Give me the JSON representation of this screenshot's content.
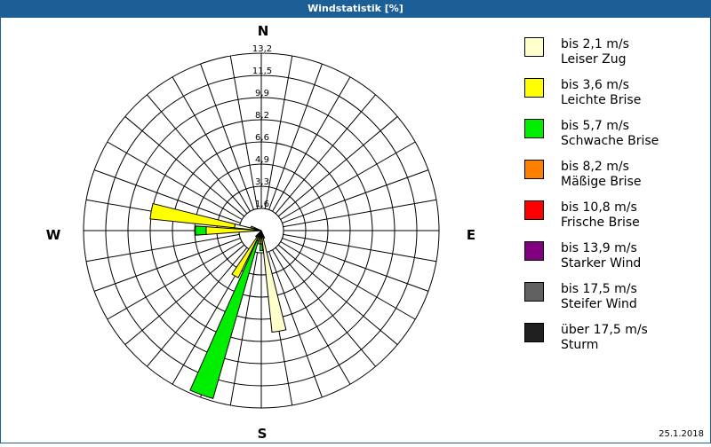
{
  "window": {
    "title": "Windstatistik [%]"
  },
  "footer": {
    "date": "25.1.2018"
  },
  "compass": {
    "n": "N",
    "e": "E",
    "s": "S",
    "w": "W"
  },
  "colors": {
    "title_bar": "#1c5f96",
    "grid": "#000000"
  },
  "legend": [
    {
      "range": "bis 2,1 m/s",
      "name": "Leiser Zug",
      "color": "#ffffcc"
    },
    {
      "range": "bis 3,6 m/s",
      "name": "Leichte Brise",
      "color": "#ffff00"
    },
    {
      "range": "bis 5,7 m/s",
      "name": "Schwache Brise",
      "color": "#00ee00"
    },
    {
      "range": "bis 8,2 m/s",
      "name": "Mäßige Brise",
      "color": "#ff8000"
    },
    {
      "range": "bis 10,8 m/s",
      "name": "Frische Brise",
      "color": "#ff0000"
    },
    {
      "range": "bis 13,9 m/s",
      "name": "Starker Wind",
      "color": "#800080"
    },
    {
      "range": "bis 17,5 m/s",
      "name": "Steifer Wind",
      "color": "#606060"
    },
    {
      "range": "über 17,5 m/s",
      "name": "Sturm",
      "color": "#202020"
    }
  ],
  "chart_data": {
    "type": "wind-rose (stacked polar bar)",
    "title": "Windstatistik [%]",
    "unit": "%",
    "rings": [
      "1,6",
      "3,3",
      "4,9",
      "6,6",
      "8,2",
      "9,9",
      "11,5",
      "13,2"
    ],
    "rmax": 13.2,
    "sector_degrees": 10,
    "grid": true,
    "legend_position": "right",
    "series_names": [
      "bis 2,1 m/s",
      "bis 3,6 m/s",
      "bis 5,7 m/s",
      "bis 8,2 m/s",
      "bis 10,8 m/s",
      "bis 13,9 m/s",
      "bis 17,5 m/s",
      "über 17,5 m/s"
    ],
    "bars": [
      {
        "direction_deg": 280,
        "values": [
          2.0,
          6.3,
          0,
          0,
          0,
          0,
          0,
          0
        ]
      },
      {
        "direction_deg": 270,
        "values": [
          0.3,
          3.8,
          0.8,
          0,
          0,
          0,
          0,
          0
        ]
      },
      {
        "direction_deg": 210,
        "values": [
          0.3,
          3.6,
          0,
          0,
          0,
          0,
          0,
          0
        ]
      },
      {
        "direction_deg": 200,
        "values": [
          0.3,
          0.5,
          12.2,
          0,
          0,
          0,
          0,
          0
        ]
      },
      {
        "direction_deg": 180,
        "values": [
          0.2,
          0.8,
          0.5,
          0,
          0,
          0,
          0,
          0
        ]
      },
      {
        "direction_deg": 170,
        "values": [
          7.6,
          0,
          0,
          0,
          0,
          0,
          0,
          0
        ]
      },
      {
        "direction_deg": 190,
        "values": [
          0.6,
          0.4,
          0,
          0,
          0,
          0,
          0,
          0
        ]
      },
      {
        "direction_deg": 160,
        "values": [
          0.6,
          0,
          0,
          0,
          0,
          0,
          0,
          0
        ]
      },
      {
        "direction_deg": 290,
        "values": [
          0.5,
          0.3,
          0,
          0,
          0,
          0,
          0,
          0
        ]
      },
      {
        "direction_deg": 220,
        "values": [
          0.4,
          0.2,
          0,
          0,
          0,
          0,
          0,
          0
        ]
      }
    ],
    "date": "25.1.2018"
  }
}
